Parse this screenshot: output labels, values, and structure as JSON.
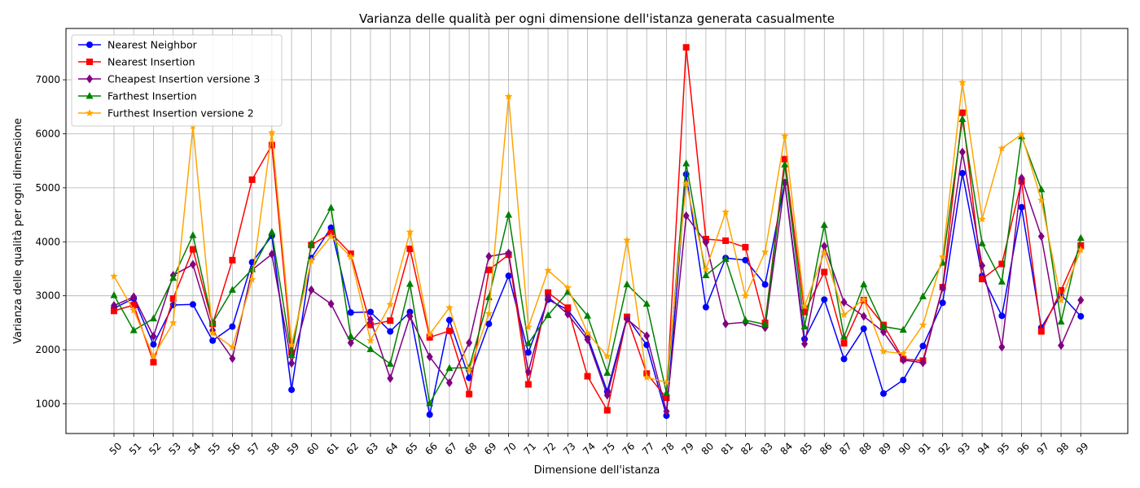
{
  "chart_data": {
    "type": "line",
    "title": "Varianza delle qualità per ogni dimensione dell'istanza generata casualmente",
    "xlabel": "Dimensione dell'istanza",
    "ylabel": "Varianza delle qualità per ogni dimensione",
    "x": [
      50,
      51,
      52,
      53,
      54,
      55,
      56,
      57,
      58,
      59,
      60,
      61,
      62,
      63,
      64,
      65,
      66,
      67,
      68,
      69,
      70,
      71,
      72,
      73,
      74,
      75,
      76,
      77,
      78,
      79,
      80,
      81,
      82,
      83,
      84,
      85,
      86,
      87,
      88,
      89,
      90,
      91,
      92,
      93,
      94,
      95,
      96,
      97,
      98,
      99
    ],
    "ylim": [
      450,
      7950
    ],
    "yticks": [
      1000,
      2000,
      3000,
      4000,
      5000,
      6000,
      7000
    ],
    "grid": true,
    "legend_position": "top-left",
    "series": [
      {
        "name": "Nearest Neighbor",
        "color": "#0000ff",
        "marker": "circle",
        "values": [
          2770,
          2950,
          2100,
          2830,
          2840,
          2170,
          2430,
          3620,
          4110,
          1260,
          3700,
          4260,
          2690,
          2700,
          2340,
          2700,
          800,
          2550,
          1480,
          2480,
          3370,
          1950,
          2930,
          2740,
          2250,
          1230,
          2600,
          2090,
          780,
          5250,
          2790,
          3700,
          3660,
          3210,
          5100,
          2200,
          2930,
          1830,
          2390,
          1190,
          1440,
          2070,
          2870,
          5270,
          3370,
          2630,
          4640,
          2410,
          3020,
          2620
        ]
      },
      {
        "name": "Nearest Insertion",
        "color": "#ff0000",
        "marker": "square",
        "values": [
          2720,
          2830,
          1770,
          2950,
          3860,
          2480,
          3660,
          5150,
          5790,
          1950,
          3940,
          4160,
          3780,
          2460,
          2540,
          3870,
          2230,
          2350,
          1180,
          3480,
          3760,
          1360,
          3060,
          2780,
          1510,
          880,
          2610,
          1560,
          1110,
          7600,
          4050,
          4020,
          3900,
          2500,
          5530,
          2700,
          3440,
          2120,
          2920,
          2460,
          1830,
          1800,
          3160,
          6390,
          3310,
          3590,
          5120,
          2340,
          3100,
          3930
        ]
      },
      {
        "name": "Cheapest Insertion versione 3",
        "color": "#800080",
        "marker": "diamond",
        "values": [
          2820,
          2980,
          2250,
          3380,
          3580,
          2360,
          1840,
          3480,
          3770,
          1750,
          3110,
          2850,
          2130,
          2560,
          1470,
          2620,
          1870,
          1390,
          2130,
          3730,
          3790,
          1590,
          2980,
          2660,
          2190,
          1160,
          2570,
          2260,
          860,
          4480,
          3990,
          2480,
          2510,
          2410,
          5090,
          2110,
          3920,
          2880,
          2620,
          2330,
          1810,
          1760,
          3150,
          5660,
          3560,
          2050,
          5180,
          4100,
          2080,
          2920
        ]
      },
      {
        "name": "Farthest Insertion",
        "color": "#008000",
        "marker": "triangle",
        "values": [
          3010,
          2360,
          2580,
          3330,
          4120,
          2500,
          3110,
          3490,
          4180,
          1900,
          3960,
          4630,
          2250,
          2010,
          1740,
          3220,
          1010,
          1660,
          1670,
          2970,
          4500,
          2120,
          2640,
          3070,
          2630,
          1570,
          3210,
          2850,
          1200,
          5450,
          3380,
          3680,
          2550,
          2470,
          5430,
          2430,
          4310,
          2240,
          3210,
          2430,
          2370,
          2990,
          3610,
          6270,
          3970,
          3260,
          5950,
          4970,
          2520,
          4070
        ]
      },
      {
        "name": "Furthest Insertion versione 2",
        "color": "#ffa500",
        "marker": "star",
        "values": [
          3360,
          2730,
          1880,
          2500,
          6140,
          2310,
          2050,
          3300,
          6020,
          2090,
          3650,
          4100,
          3720,
          2170,
          2840,
          4180,
          2290,
          2780,
          1620,
          2670,
          6690,
          2420,
          3470,
          3150,
          2310,
          1880,
          4030,
          1490,
          1400,
          5080,
          3490,
          4550,
          3000,
          3810,
          5960,
          2810,
          3800,
          2650,
          2930,
          1970,
          1930,
          2460,
          3720,
          6950,
          4420,
          5730,
          5990,
          4770,
          2920,
          3850
        ]
      }
    ]
  }
}
